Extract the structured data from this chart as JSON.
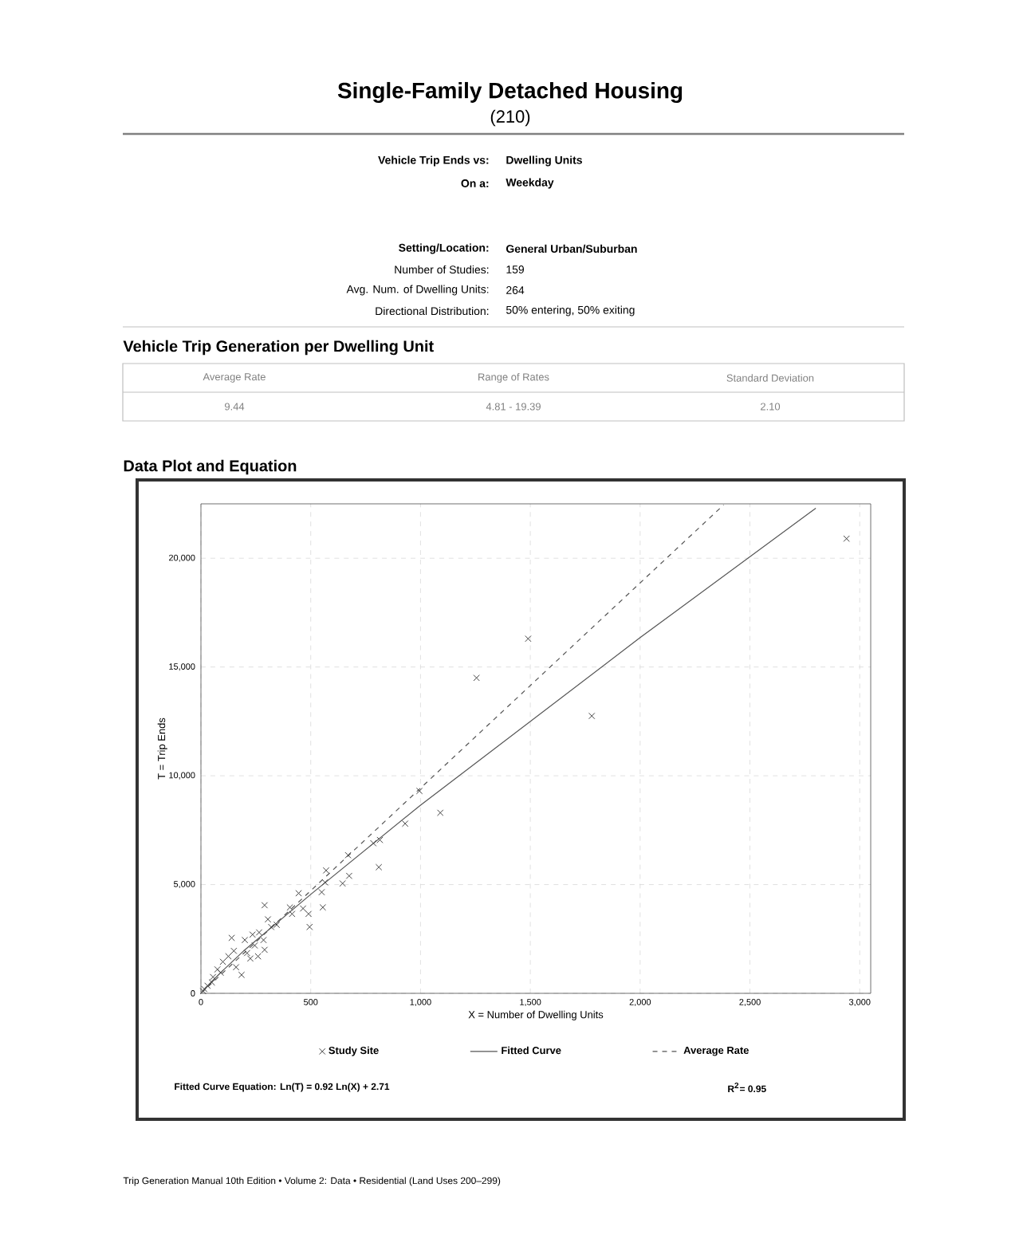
{
  "chart_data": {
    "type": "scatter",
    "title": "Single-Family Detached Housing",
    "subtitle": "(210)",
    "xlabel": "X = Number of Dwelling Units",
    "ylabel": "T = Trip Ends",
    "xlim": [
      0,
      3050
    ],
    "ylim": [
      0,
      22500
    ],
    "xticks": [
      0,
      500,
      {
        "value": 1000,
        "label": "1,000"
      },
      {
        "value": 1500,
        "label": "1,500"
      },
      {
        "value": 2000,
        "label": "2,000"
      },
      {
        "value": 2500,
        "label": "2,500"
      },
      {
        "value": 3000,
        "label": "3,000"
      }
    ],
    "yticks": [
      0,
      {
        "value": 5000,
        "label": "5,000"
      },
      {
        "value": 10000,
        "label": "10,000"
      },
      {
        "value": 15000,
        "label": "15,000"
      },
      {
        "value": 20000,
        "label": "20,000"
      }
    ],
    "grid": true,
    "legend": "bottom",
    "series": [
      {
        "name": "Study Site",
        "marker": "cross",
        "color": "#444444",
        "x": [
          2940,
          1490,
          1255,
          1780,
          995,
          1090,
          930,
          810,
          815,
          785,
          670,
          675,
          645,
          570,
          565,
          555,
          550,
          495,
          445,
          465,
          405,
          415,
          490,
          290,
          305,
          265,
          245,
          290,
          225,
          140,
          150,
          185,
          100,
          75,
          55,
          30,
          15,
          200,
          235,
          320,
          345,
          125,
          90,
          160,
          210,
          260,
          285,
          50,
          10
        ],
        "values": [
          20900,
          16300,
          14500,
          12750,
          9300,
          8300,
          7800,
          5800,
          7050,
          6900,
          6350,
          5400,
          5050,
          5650,
          5100,
          3950,
          4650,
          3050,
          4600,
          3900,
          3950,
          3650,
          3650,
          4050,
          3400,
          2800,
          2200,
          2000,
          1600,
          2550,
          1950,
          850,
          1450,
          1100,
          750,
          350,
          200,
          2450,
          2700,
          3050,
          3150,
          1700,
          950,
          1200,
          1850,
          1700,
          2450,
          500,
          100
        ]
      },
      {
        "name": "Fitted Curve",
        "type": "line",
        "line_style": "solid",
        "color": "#555555",
        "x": [
          10,
          50,
          100,
          200,
          500,
          1000,
          2000,
          2800
        ],
        "values": [
          100,
          550,
          1050,
          2000,
          4550,
          8650,
          16350,
          22300
        ]
      },
      {
        "name": "Average Rate",
        "type": "line",
        "line_style": "dashed",
        "color": "#555555",
        "x": [
          0,
          2380
        ],
        "values": [
          0,
          22450
        ]
      }
    ],
    "annotations": [
      "Vehicle Trip Ends vs:",
      "Dwelling Units",
      "On a:",
      "Weekday",
      "Setting/Location:",
      "General Urban/Suburban",
      "Number of Studies:",
      "159",
      "Avg. Num. of Dwelling Units:",
      "264",
      "Directional Distribution:",
      "50% entering, 50% exiting",
      "Vehicle Trip Generation per Dwelling Unit",
      "Average Rate",
      "Range of Rates",
      "Standard Deviation",
      "9.44",
      "4.81 - 19.39",
      "2.10",
      "Data Plot and Equation",
      "Fitted Curve Equation: Ln(T) = 0.92 Ln(X) + 2.71",
      "R$^{2}$= 0.95",
      "Trip Generation Manual 10th Edition • Volume 2: Data • Residential (Land Uses 200–299)"
    ]
  }
}
